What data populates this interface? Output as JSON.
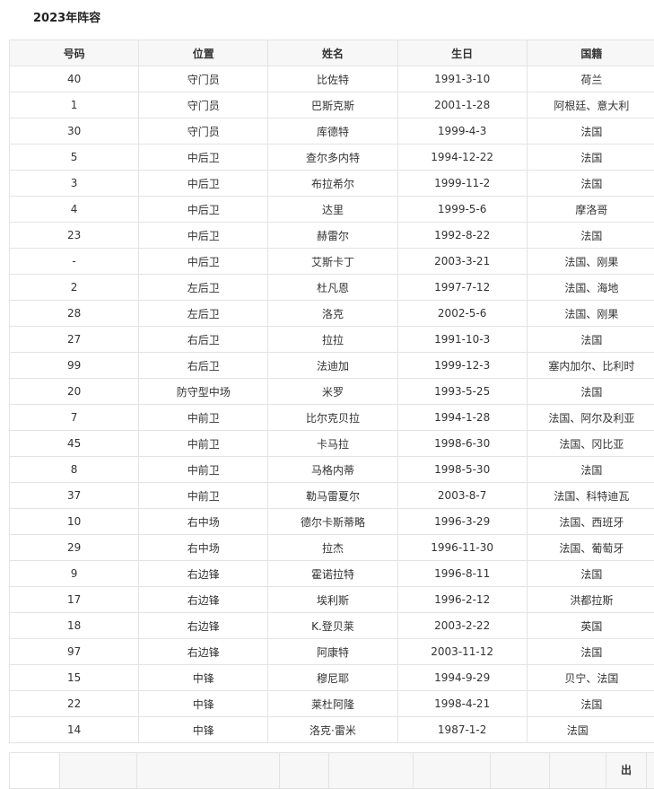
{
  "section_title": "2023年阵容",
  "headers": [
    "号码",
    "位置",
    "姓名",
    "生日",
    "国籍"
  ],
  "rows": [
    [
      "40",
      "守门员",
      "比佐特",
      "1991-3-10",
      "荷兰"
    ],
    [
      "1",
      "守门员",
      "巴斯克斯",
      "2001-1-28",
      "阿根廷、意大利"
    ],
    [
      "30",
      "守门员",
      "库德特",
      "1999-4-3",
      "法国"
    ],
    [
      "5",
      "中后卫",
      "查尔多内特",
      "1994-12-22",
      "法国"
    ],
    [
      "3",
      "中后卫",
      "布拉希尔",
      "1999-11-2",
      "法国"
    ],
    [
      "4",
      "中后卫",
      "达里",
      "1999-5-6",
      "摩洛哥"
    ],
    [
      "23",
      "中后卫",
      "赫雷尔",
      "1992-8-22",
      "法国"
    ],
    [
      "-",
      "中后卫",
      "艾斯卡丁",
      "2003-3-21",
      "法国、刚果"
    ],
    [
      "2",
      "左后卫",
      "杜凡恩",
      "1997-7-12",
      "法国、海地"
    ],
    [
      "28",
      "左后卫",
      "洛克",
      "2002-5-6",
      "法国、刚果"
    ],
    [
      "27",
      "右后卫",
      "拉拉",
      "1991-10-3",
      "法国"
    ],
    [
      "99",
      "右后卫",
      "法迪加",
      "1999-12-3",
      "塞内加尔、比利时"
    ],
    [
      "20",
      "防守型中场",
      "米罗",
      "1993-5-25",
      "法国"
    ],
    [
      "7",
      "中前卫",
      "比尔克贝拉",
      "1994-1-28",
      "法国、阿尔及利亚"
    ],
    [
      "45",
      "中前卫",
      "卡马拉",
      "1998-6-30",
      "法国、冈比亚"
    ],
    [
      "8",
      "中前卫",
      "马格内蒂",
      "1998-5-30",
      "法国"
    ],
    [
      "37",
      "中前卫",
      "勒马雷夏尔",
      "2003-8-7",
      "法国、科特迪瓦"
    ],
    [
      "10",
      "右中场",
      "德尔卡斯蒂略",
      "1996-3-29",
      "法国、西班牙"
    ],
    [
      "29",
      "右中场",
      "拉杰",
      "1996-11-30",
      "法国、葡萄牙"
    ],
    [
      "9",
      "右边锋",
      "霍诺拉特",
      "1996-8-11",
      "法国"
    ],
    [
      "17",
      "右边锋",
      "埃利斯",
      "1996-2-12",
      "洪都拉斯"
    ],
    [
      "18",
      "右边锋",
      "K.登贝莱",
      "2003-2-22",
      "英国"
    ],
    [
      "97",
      "右边锋",
      "阿康特",
      "2003-11-12",
      "法国"
    ],
    [
      "15",
      "中锋",
      "穆尼耶",
      "1994-9-29",
      "贝宁、法国"
    ],
    [
      "22",
      "中锋",
      "莱杜阿隆",
      "1998-4-21",
      "法国"
    ],
    [
      "14",
      "中锋",
      "洛克·雷米",
      "1987-1-2",
      "法国"
    ]
  ],
  "next_table": {
    "visible_header_fragment": "出"
  }
}
